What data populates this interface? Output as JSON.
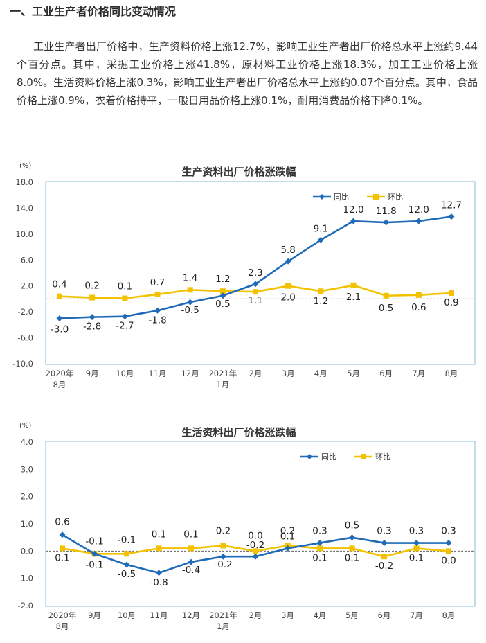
{
  "section_heading": "一、工业生产者价格同比变动情况",
  "paragraph": "工业生产者出厂价格中，生产资料价格上涨12.7%，影响工业生产者出厂价格总水平上涨约9.44个百分点。其中，采掘工业价格上涨41.8%，原材料工业价格上涨18.3%，加工工业价格上涨8.0%。生活资料价格上涨0.3%，影响工业生产者出厂价格总水平上涨约0.07个百分点。其中，食品价格上涨0.9%，衣着价格持平，一般日用品价格上涨0.1%，耐用消费品价格下降0.1%。",
  "colors": {
    "yoy": "#1f6bb8",
    "mom": "#f2c200",
    "frame": "#9cc6e0"
  },
  "chart_data": [
    {
      "type": "line",
      "title": "生产资料出厂价格涨跌幅",
      "ylabel": "(%)",
      "ylim": [
        -10,
        18
      ],
      "yticks": [
        "18.0",
        "14.0",
        "10.0",
        "6.0",
        "2.0",
        "-2.0",
        "-6.0",
        "-10.0"
      ],
      "categories": [
        [
          "2020年",
          "8月"
        ],
        [
          "9月"
        ],
        [
          "10月"
        ],
        [
          "11月"
        ],
        [
          "12月"
        ],
        [
          "2021年",
          "1月"
        ],
        [
          "2月"
        ],
        [
          "3月"
        ],
        [
          "4月"
        ],
        [
          "5月"
        ],
        [
          "6月"
        ],
        [
          "7月"
        ],
        [
          "8月"
        ]
      ],
      "series": [
        {
          "name": "同比",
          "values": [
            -3.0,
            -2.8,
            -2.7,
            -1.8,
            -0.5,
            0.5,
            2.3,
            5.8,
            9.1,
            12.0,
            11.8,
            12.0,
            12.7
          ],
          "labels": [
            "-3.0",
            "-2.8",
            "-2.7",
            "-1.8",
            "-0.5",
            "0.5",
            "2.3",
            "5.8",
            "9.1",
            "12.0",
            "11.8",
            "12.0",
            "12.7"
          ]
        },
        {
          "name": "环比",
          "values": [
            0.4,
            0.2,
            0.1,
            0.7,
            1.4,
            1.2,
            1.1,
            2.0,
            1.2,
            2.1,
            0.5,
            0.6,
            0.9
          ],
          "labels": [
            "0.4",
            "0.2",
            "0.1",
            "0.7",
            "1.4",
            "1.2",
            "1.1",
            "2.0",
            "1.2",
            "2.1",
            "0.5",
            "0.6",
            "0.9"
          ]
        }
      ]
    },
    {
      "type": "line",
      "title": "生活资料出厂价格涨跌幅",
      "ylabel": "(%)",
      "ylim": [
        -2,
        4
      ],
      "yticks": [
        "4.0",
        "3.0",
        "2.0",
        "1.0",
        "0.0",
        "-1.0",
        "-2.0"
      ],
      "categories": [
        [
          "2020年",
          "8月"
        ],
        [
          "9月"
        ],
        [
          "10月"
        ],
        [
          "11月"
        ],
        [
          "12月"
        ],
        [
          "2021年",
          "1月"
        ],
        [
          "2月"
        ],
        [
          "3月"
        ],
        [
          "4月"
        ],
        [
          "5月"
        ],
        [
          "6月"
        ],
        [
          "7月"
        ],
        [
          "8月"
        ]
      ],
      "series": [
        {
          "name": "同比",
          "values": [
            0.6,
            -0.1,
            -0.5,
            -0.8,
            -0.4,
            -0.2,
            -0.2,
            0.1,
            0.3,
            0.5,
            0.3,
            0.3,
            0.3
          ],
          "labels": [
            "0.6",
            "-0.1",
            "-0.5",
            "-0.8",
            "-0.4",
            "-0.2",
            "-0.2",
            "0.1",
            "0.3",
            "0.5",
            "0.3",
            "0.3",
            "0.3"
          ]
        },
        {
          "name": "环比",
          "values": [
            0.1,
            -0.1,
            -0.1,
            0.1,
            0.1,
            0.2,
            0.0,
            0.2,
            0.1,
            0.1,
            -0.2,
            0.1,
            0.0
          ],
          "labels": [
            "0.1",
            "-0.1",
            "-0.1",
            "0.1",
            "0.1",
            "0.2",
            "0.0",
            "0.2",
            "0.1",
            "0.1",
            "-0.2",
            "0.1",
            "0.0"
          ]
        }
      ]
    }
  ]
}
